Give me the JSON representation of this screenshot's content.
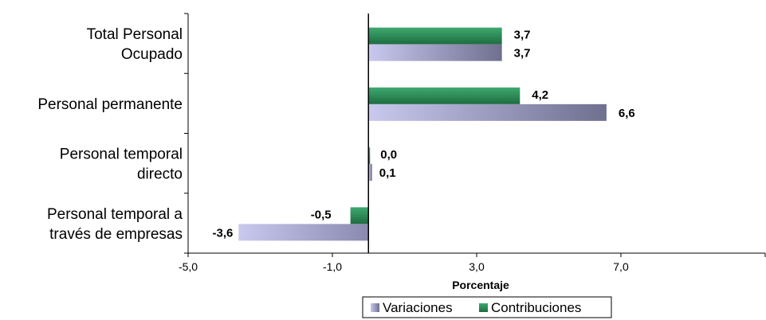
{
  "chart_data": {
    "type": "bar",
    "orientation": "horizontal",
    "categories": [
      [
        "Total Personal",
        "Ocupado"
      ],
      [
        "Personal permanente"
      ],
      [
        "Personal temporal",
        "directo"
      ],
      [
        "Personal temporal a",
        "través de empresas"
      ]
    ],
    "series": [
      {
        "name": "Contribuciones",
        "values": [
          3.7,
          4.2,
          0.0,
          -0.5
        ],
        "labels": [
          "3,7",
          "4,2",
          "0,0",
          "-0,5"
        ],
        "color": "#2e8b57"
      },
      {
        "name": "Variaciones",
        "values": [
          3.7,
          6.6,
          0.1,
          -3.6
        ],
        "labels": [
          "3,7",
          "6,6",
          "0,1",
          "-3,6"
        ],
        "color": "#a9a9d6"
      }
    ],
    "xticks": [
      -5,
      -1,
      3,
      7
    ],
    "xtick_labels": [
      "-5,0",
      "-1,0",
      "3,0",
      "7,0"
    ],
    "xlim": [
      -5,
      11
    ],
    "xlabel": "Porcentaje",
    "legend": {
      "items": [
        "Variaciones",
        "Contribuciones"
      ],
      "placement": "bottom"
    },
    "grid": false
  }
}
